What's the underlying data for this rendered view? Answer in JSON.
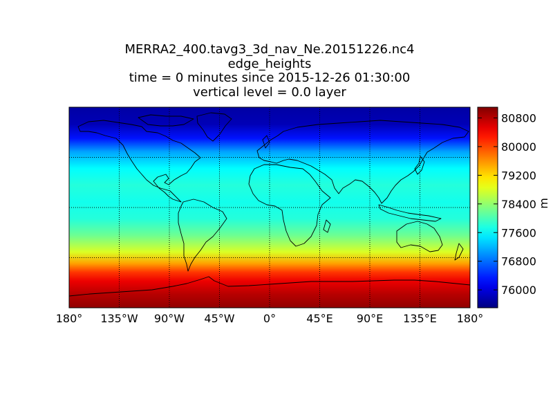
{
  "title_lines": [
    "MERRA2_400.tavg3_3d_nav_Ne.20151226.nc4",
    "edge_heights",
    "time = 0 minutes since 2015-12-26 01:30:00",
    "vertical level = 0.0 layer"
  ],
  "map": {
    "projection": "plate-carree",
    "lon_range": [
      -180,
      180
    ],
    "lat_range": [
      -90,
      90
    ],
    "graticule": "dotted",
    "lon_ticks": [
      {
        "lon": -180,
        "label": "180°"
      },
      {
        "lon": -135,
        "label": "135°W"
      },
      {
        "lon": -90,
        "label": "90°W"
      },
      {
        "lon": -45,
        "label": "45°W"
      },
      {
        "lon": 0,
        "label": "0°"
      },
      {
        "lon": 45,
        "label": "45°E"
      },
      {
        "lon": 90,
        "label": "90°E"
      },
      {
        "lon": 135,
        "label": "135°E"
      },
      {
        "lon": 180,
        "label": "180°"
      }
    ],
    "lat_lines": [
      45,
      0,
      -45
    ],
    "field_profile": [
      {
        "lat": 90,
        "value": 75700
      },
      {
        "lat": 75,
        "value": 75800
      },
      {
        "lat": 62,
        "value": 76300
      },
      {
        "lat": 50,
        "value": 77100
      },
      {
        "lat": 35,
        "value": 77600
      },
      {
        "lat": 20,
        "value": 77800
      },
      {
        "lat": 5,
        "value": 77700
      },
      {
        "lat": -10,
        "value": 77800
      },
      {
        "lat": -25,
        "value": 78200
      },
      {
        "lat": -40,
        "value": 78800
      },
      {
        "lat": -50,
        "value": 79500
      },
      {
        "lat": -58,
        "value": 80100
      },
      {
        "lat": -66,
        "value": 80500
      },
      {
        "lat": -78,
        "value": 80800
      },
      {
        "lat": -90,
        "value": 81000
      }
    ]
  },
  "colorbar": {
    "colormap": "jet",
    "vmin": 75500,
    "vmax": 81100,
    "unit": "m",
    "ticks": [
      {
        "value": 76000,
        "label": "76000"
      },
      {
        "value": 76800,
        "label": "76800"
      },
      {
        "value": 77600,
        "label": "77600"
      },
      {
        "value": 78400,
        "label": "78400"
      },
      {
        "value": 79200,
        "label": "79200"
      },
      {
        "value": 80000,
        "label": "80000"
      },
      {
        "value": 80800,
        "label": "80800"
      }
    ]
  }
}
